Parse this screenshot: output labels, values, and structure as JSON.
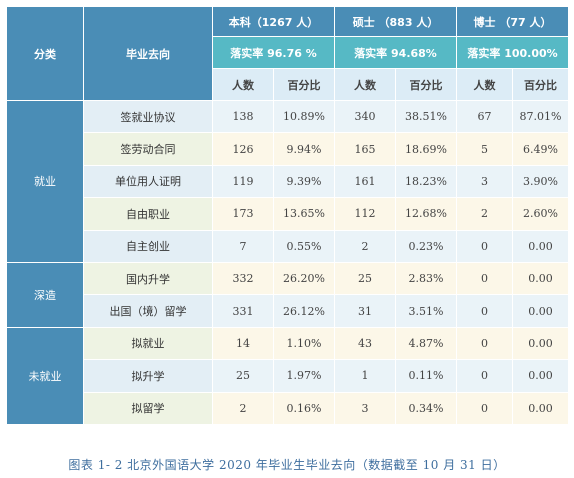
{
  "header": {
    "category_label": "分类",
    "destination_label": "毕业去向",
    "groups": [
      {
        "name": "本科（1267 人）",
        "rate": "落实率 96.76 %"
      },
      {
        "name": "硕士 （883 人）",
        "rate": "落实率 94.68%"
      },
      {
        "name": "博士 （77 人）",
        "rate": "落实率 100.00%"
      }
    ],
    "count_label": "人数",
    "percent_label": "百分比"
  },
  "categories": [
    {
      "name": "就业",
      "rows": [
        {
          "destination": "签就业协议",
          "values": [
            "138",
            "10.89%",
            "340",
            "38.51%",
            "67",
            "87.01%"
          ]
        },
        {
          "destination": "签劳动合同",
          "values": [
            "126",
            "9.94%",
            "165",
            "18.69%",
            "5",
            "6.49%"
          ]
        },
        {
          "destination": "单位用人证明",
          "values": [
            "119",
            "9.39%",
            "161",
            "18.23%",
            "3",
            "3.90%"
          ]
        },
        {
          "destination": "自由职业",
          "values": [
            "173",
            "13.65%",
            "112",
            "12.68%",
            "2",
            "2.60%"
          ]
        },
        {
          "destination": "自主创业",
          "values": [
            "7",
            "0.55%",
            "2",
            "0.23%",
            "0",
            "0.00"
          ]
        }
      ]
    },
    {
      "name": "深造",
      "rows": [
        {
          "destination": "国内升学",
          "values": [
            "332",
            "26.20%",
            "25",
            "2.83%",
            "0",
            "0.00"
          ]
        },
        {
          "destination": "出国（境）留学",
          "values": [
            "331",
            "26.12%",
            "31",
            "3.51%",
            "0",
            "0.00"
          ]
        }
      ]
    },
    {
      "name": "未就业",
      "rows": [
        {
          "destination": "拟就业",
          "values": [
            "14",
            "1.10%",
            "43",
            "4.87%",
            "0",
            "0.00"
          ]
        },
        {
          "destination": "拟升学",
          "values": [
            "25",
            "1.97%",
            "1",
            "0.11%",
            "0",
            "0.00"
          ]
        },
        {
          "destination": "拟留学",
          "values": [
            "2",
            "0.16%",
            "3",
            "0.34%",
            "0",
            "0.00"
          ]
        }
      ]
    }
  ],
  "caption": "图表 1- 2  北京外国语大学 2020 年毕业生毕业去向（数据截至 10 月 31 日）"
}
